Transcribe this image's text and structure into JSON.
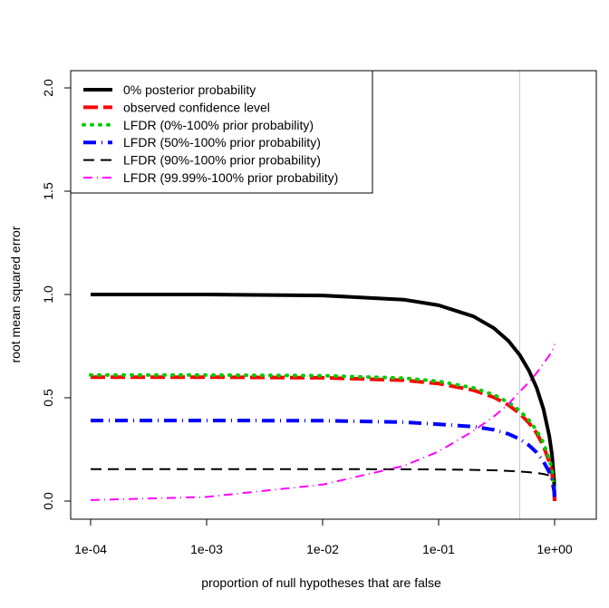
{
  "chart_data": {
    "type": "line",
    "xlabel": "proportion of null hypotheses that are false",
    "ylabel": "root mean squared error",
    "x_scale": "log",
    "xlim": [
      0.0001,
      1
    ],
    "ylim": [
      0,
      2
    ],
    "x_ticks": [
      "1e-04",
      "1e-03",
      "1e-02",
      "1e-01",
      "1e+00"
    ],
    "y_ticks": [
      "0.0",
      "0.5",
      "1.0",
      "1.5",
      "2.0"
    ],
    "legend_position": "top-left",
    "reference_line": {
      "x": 0.5,
      "color": "#c8c8c8"
    },
    "x": [
      0.0001,
      0.001,
      0.01,
      0.05,
      0.1,
      0.2,
      0.3,
      0.4,
      0.5,
      0.6,
      0.7,
      0.8,
      0.9,
      0.95,
      0.99,
      1.0
    ],
    "series": [
      {
        "name": "0% posterior probability",
        "color": "#000000",
        "dash": "solid",
        "width": 4,
        "values": [
          1.0,
          1.0,
          0.995,
          0.975,
          0.948,
          0.894,
          0.837,
          0.775,
          0.707,
          0.632,
          0.548,
          0.447,
          0.316,
          0.224,
          0.1,
          0.0
        ]
      },
      {
        "name": "observed confidence level",
        "color": "#ff0000",
        "dash": "longdash",
        "width": 4,
        "values": [
          0.6,
          0.6,
          0.597,
          0.585,
          0.569,
          0.537,
          0.502,
          0.465,
          0.424,
          0.379,
          0.329,
          0.268,
          0.19,
          0.134,
          0.06,
          0.0
        ]
      },
      {
        "name": "LFDR (0%-100% prior probability)",
        "color": "#00cc00",
        "dash": "dotted",
        "width": 4,
        "values": [
          0.61,
          0.61,
          0.607,
          0.595,
          0.58,
          0.548,
          0.514,
          0.477,
          0.437,
          0.392,
          0.342,
          0.282,
          0.205,
          0.15,
          0.08,
          0.03
        ]
      },
      {
        "name": "LFDR (50%-100% prior probability)",
        "color": "#0000ff",
        "dash": "dotdash",
        "width": 4,
        "values": [
          0.39,
          0.39,
          0.389,
          0.382,
          0.372,
          0.36,
          0.345,
          0.325,
          0.3,
          0.27,
          0.235,
          0.192,
          0.14,
          0.1,
          0.05,
          0.02
        ]
      },
      {
        "name": "LFDR (90%-100% prior probability)",
        "color": "#000000",
        "dash": "dashed",
        "width": 2,
        "values": [
          0.155,
          0.155,
          0.155,
          0.154,
          0.153,
          0.151,
          0.149,
          0.146,
          0.143,
          0.14,
          0.136,
          0.131,
          0.124,
          0.118,
          0.108,
          0.1
        ]
      },
      {
        "name": "LFDR (99.99%-100% prior probability)",
        "color": "#ff00ff",
        "dash": "dotdash",
        "width": 2,
        "values": [
          0.005,
          0.02,
          0.08,
          0.17,
          0.24,
          0.34,
          0.41,
          0.47,
          0.53,
          0.575,
          0.62,
          0.665,
          0.705,
          0.725,
          0.745,
          0.76
        ]
      }
    ]
  }
}
